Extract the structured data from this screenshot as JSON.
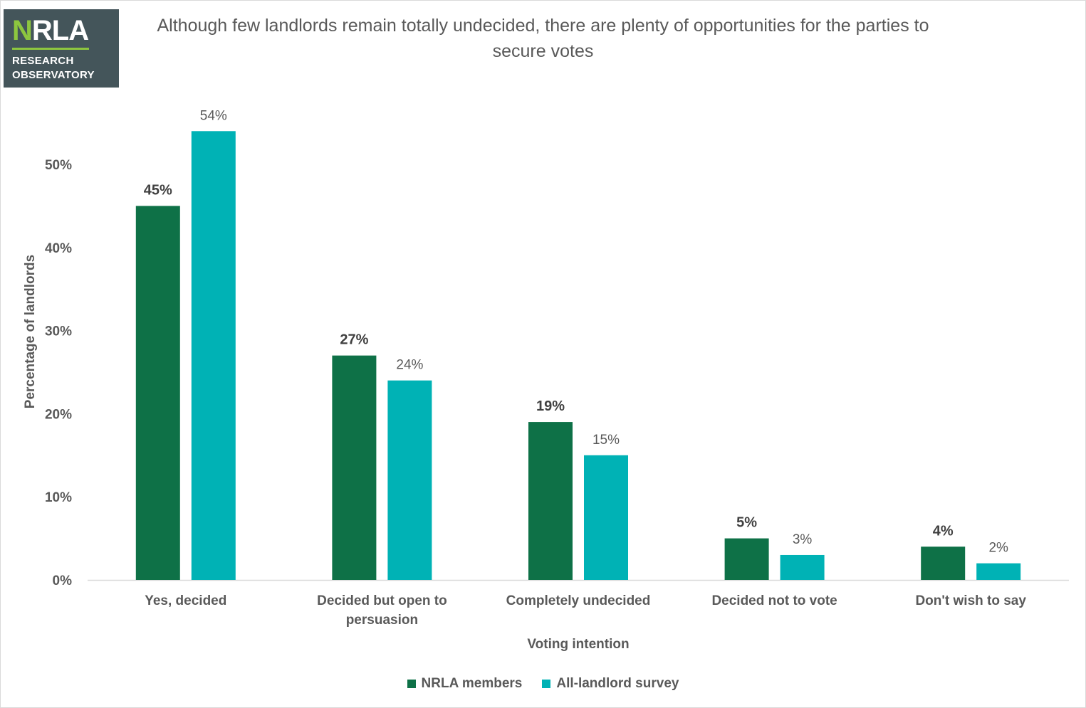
{
  "logo": {
    "name": "NRLA",
    "line1": "RESEARCH",
    "line2": "OBSERVATORY"
  },
  "colors": {
    "series1": "#0e7147",
    "series2": "#00b2b5",
    "text": "#595959",
    "axis": "#d9d9d9"
  },
  "chart_data": {
    "type": "bar",
    "title": "Although few landlords remain totally undecided, there are plenty of opportunities for the parties to secure votes",
    "xlabel": "Voting intention",
    "ylabel": "Percentage of landlords",
    "ylim": [
      0,
      56
    ],
    "yticks": [
      "0%",
      "10%",
      "20%",
      "30%",
      "40%",
      "50%"
    ],
    "ytick_values": [
      0,
      10,
      20,
      30,
      40,
      50
    ],
    "categories": [
      "Yes, decided",
      "Decided but open to persuasion",
      "Completely undecided",
      "Decided not to vote",
      "Don't wish to say"
    ],
    "series": [
      {
        "name": "NRLA members",
        "values": [
          45,
          27,
          19,
          5,
          4
        ],
        "labels": [
          "45%",
          "27%",
          "19%",
          "5%",
          "4%"
        ]
      },
      {
        "name": "All-landlord survey",
        "values": [
          54,
          24,
          15,
          3,
          2
        ],
        "labels": [
          "54%",
          "24%",
          "15%",
          "3%",
          "2%"
        ]
      }
    ],
    "grid": false,
    "legend_position": "bottom"
  }
}
